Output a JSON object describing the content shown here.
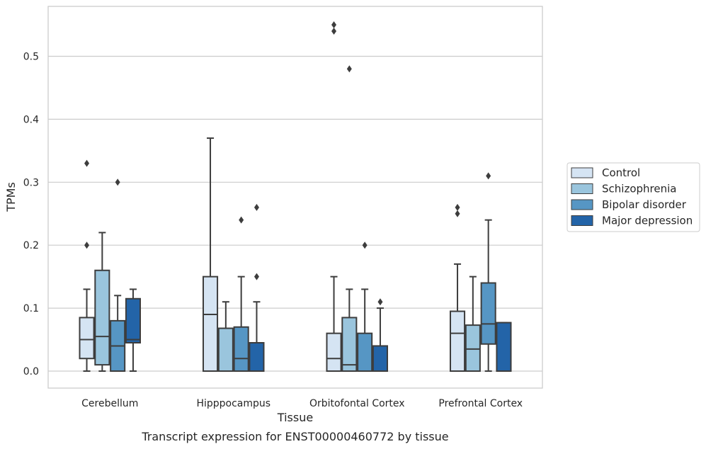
{
  "chart_data": {
    "type": "box",
    "title": "",
    "caption": "Transcript expression for ENST00000460772 by tissue",
    "xlabel": "Tissue",
    "ylabel": "TPMs",
    "ylim": [
      -0.027,
      0.583
    ],
    "yticks": [
      0.0,
      0.1,
      0.2,
      0.3,
      0.4,
      0.5
    ],
    "ytick_labels": [
      "0.0",
      "0.1",
      "0.2",
      "0.3",
      "0.4",
      "0.5"
    ],
    "grid": "horizontal",
    "legend_position": "right",
    "categories": [
      "Cerebellum",
      "Hipppocampus",
      "Orbitofontal Cortex",
      "Prefrontal Cortex"
    ],
    "series": [
      {
        "name": "Control",
        "color": "#d5e4f3",
        "boxes": [
          {
            "whislo": 0.0,
            "q1": 0.02,
            "med": 0.05,
            "q3": 0.085,
            "whishi": 0.13,
            "fliers": [
              0.2,
              0.33
            ]
          },
          {
            "whislo": 0.0,
            "q1": 0.0,
            "med": 0.09,
            "q3": 0.15,
            "whishi": 0.37,
            "fliers": []
          },
          {
            "whislo": 0.0,
            "q1": 0.0,
            "med": 0.02,
            "q3": 0.06,
            "whishi": 0.15,
            "fliers": [
              0.54,
              0.55
            ]
          },
          {
            "whislo": 0.0,
            "q1": 0.0,
            "med": 0.06,
            "q3": 0.095,
            "whishi": 0.17,
            "fliers": [
              0.25,
              0.26
            ]
          }
        ]
      },
      {
        "name": "Schizophrenia",
        "color": "#9ac5dd",
        "boxes": [
          {
            "whislo": 0.0,
            "q1": 0.01,
            "med": 0.055,
            "q3": 0.16,
            "whishi": 0.22,
            "fliers": []
          },
          {
            "whislo": 0.0,
            "q1": 0.0,
            "med": 0.0,
            "q3": 0.068,
            "whishi": 0.11,
            "fliers": []
          },
          {
            "whislo": 0.0,
            "q1": 0.0,
            "med": 0.01,
            "q3": 0.085,
            "whishi": 0.13,
            "fliers": [
              0.48
            ]
          },
          {
            "whislo": 0.0,
            "q1": 0.0,
            "med": 0.035,
            "q3": 0.073,
            "whishi": 0.15,
            "fliers": []
          }
        ]
      },
      {
        "name": "Bipolar disorder",
        "color": "#5696c4",
        "boxes": [
          {
            "whislo": 0.0,
            "q1": 0.0,
            "med": 0.04,
            "q3": 0.08,
            "whishi": 0.12,
            "fliers": [
              0.3
            ]
          },
          {
            "whislo": 0.0,
            "q1": 0.0,
            "med": 0.02,
            "q3": 0.07,
            "whishi": 0.15,
            "fliers": [
              0.24
            ]
          },
          {
            "whislo": 0.0,
            "q1": 0.0,
            "med": 0.0,
            "q3": 0.06,
            "whishi": 0.13,
            "fliers": [
              0.2
            ]
          },
          {
            "whislo": 0.0,
            "q1": 0.043,
            "med": 0.075,
            "q3": 0.14,
            "whishi": 0.24,
            "fliers": [
              0.31
            ]
          }
        ]
      },
      {
        "name": "Major depression",
        "color": "#2364a8",
        "boxes": [
          {
            "whislo": 0.0,
            "q1": 0.045,
            "med": 0.05,
            "q3": 0.115,
            "whishi": 0.13,
            "fliers": []
          },
          {
            "whislo": 0.0,
            "q1": 0.0,
            "med": 0.0,
            "q3": 0.045,
            "whishi": 0.11,
            "fliers": [
              0.15,
              0.26
            ]
          },
          {
            "whislo": 0.0,
            "q1": 0.0,
            "med": 0.0,
            "q3": 0.04,
            "whishi": 0.1,
            "fliers": [
              0.11
            ]
          },
          {
            "whislo": 0.0,
            "q1": 0.0,
            "med": 0.0,
            "q3": 0.077,
            "whishi": 0.077,
            "fliers": []
          }
        ]
      }
    ]
  }
}
